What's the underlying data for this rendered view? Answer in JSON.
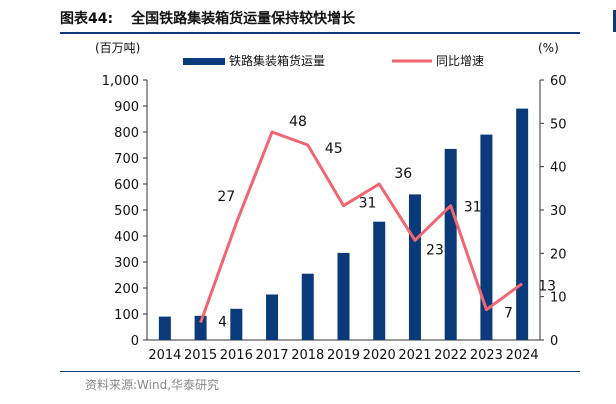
{
  "figure": {
    "title_number": "图表44:",
    "title_text": "全国铁路集装箱货运量保持较快增长",
    "source": "资料来源:Wind,华泰研究"
  },
  "chart_data": {
    "type": "bar+line",
    "categories": [
      "2014",
      "2015",
      "2016",
      "2017",
      "2018",
      "2019",
      "2020",
      "2021",
      "2022",
      "2023",
      "2024"
    ],
    "series": [
      {
        "name": "铁路集装箱货运量",
        "kind": "bar",
        "axis": "left",
        "color": "#0a3a7a",
        "values": [
          90,
          93,
          120,
          175,
          255,
          335,
          455,
          560,
          735,
          790,
          890
        ]
      },
      {
        "name": "同比增速",
        "kind": "line",
        "axis": "right",
        "color": "#f06671",
        "values": [
          null,
          4,
          27,
          48,
          45,
          31,
          36,
          23,
          31,
          7,
          13
        ],
        "labels": [
          "",
          "4",
          "27",
          "48",
          "45",
          "31",
          "36",
          "23",
          "31",
          "7",
          "13"
        ]
      }
    ],
    "y_left": {
      "unit": "(百万吨)",
      "min": 0,
      "max": 1000,
      "ticks": [
        "0",
        "100",
        "200",
        "300",
        "400",
        "500",
        "600",
        "700",
        "800",
        "900",
        "1,000"
      ]
    },
    "y_right": {
      "unit": "(%)",
      "min": 0,
      "max": 60,
      "ticks": [
        "0",
        "10",
        "20",
        "30",
        "40",
        "50",
        "60"
      ]
    },
    "legend_position": "top",
    "grid": false
  }
}
